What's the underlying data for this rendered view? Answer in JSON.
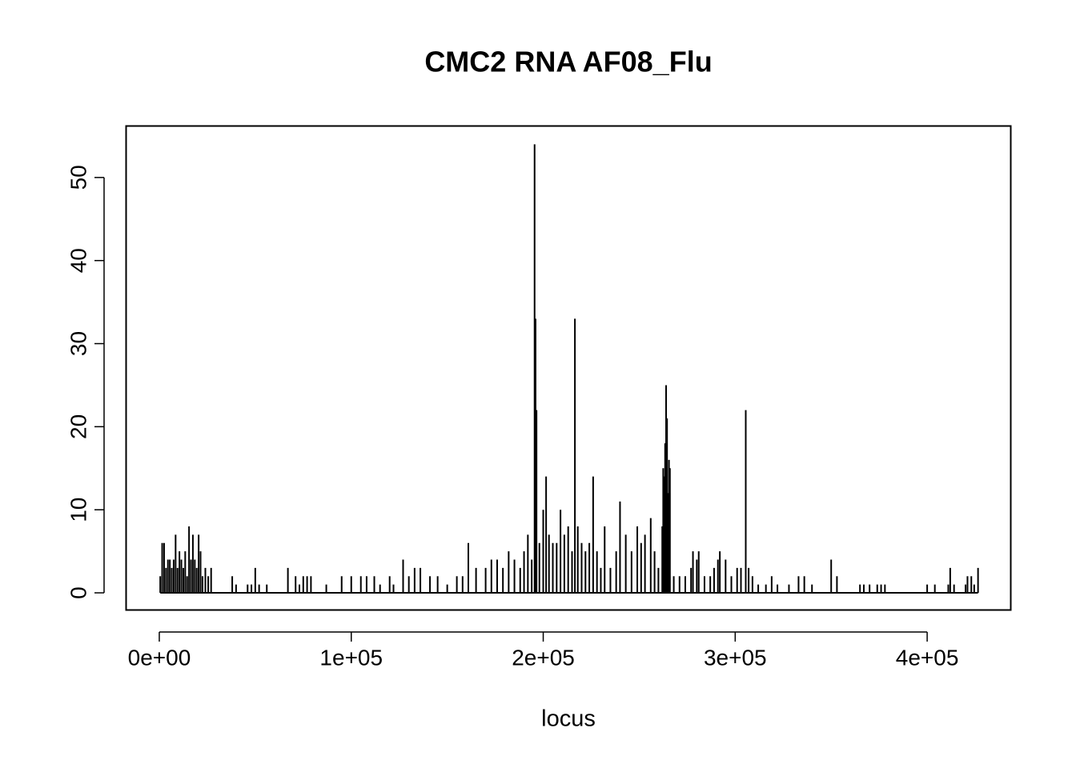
{
  "chart_data": {
    "type": "spike",
    "title": "CMC2 RNA AF08_Flu",
    "x_label": "locus",
    "color": "#000000",
    "xlim": [
      -17083,
      443750
    ],
    "ylim": [
      -2.115,
      56.15
    ],
    "xticks": [
      {
        "value": 0,
        "label": "0e+00"
      },
      {
        "value": 100000,
        "label": "1e+05"
      },
      {
        "value": 200000,
        "label": "2e+05"
      },
      {
        "value": 300000,
        "label": "3e+05"
      },
      {
        "value": 400000,
        "label": "4e+05"
      }
    ],
    "yticks": [
      0,
      10,
      20,
      30,
      40,
      50
    ],
    "x": [
      500,
      1500,
      2500,
      3500,
      4500,
      5500,
      6500,
      7500,
      8500,
      9500,
      10500,
      11500,
      12500,
      13500,
      14500,
      15500,
      16500,
      17500,
      18500,
      19500,
      20500,
      21500,
      22500,
      24000,
      25500,
      27000,
      38000,
      40000,
      46000,
      48000,
      50000,
      52000,
      56000,
      67000,
      71000,
      73000,
      75000,
      77000,
      79000,
      87000,
      95000,
      100000,
      105000,
      108000,
      112000,
      115000,
      120000,
      122000,
      127000,
      130000,
      133000,
      136000,
      141000,
      145000,
      150000,
      155000,
      158000,
      161000,
      165000,
      170000,
      173000,
      176000,
      179000,
      182000,
      185000,
      188000,
      190000,
      192000,
      194000,
      195500,
      196000,
      196500,
      198000,
      200000,
      201500,
      203000,
      205000,
      207000,
      209000,
      211000,
      213000,
      215000,
      216500,
      218000,
      220000,
      222000,
      224000,
      226000,
      228000,
      230000,
      232000,
      235000,
      238000,
      240000,
      243000,
      246000,
      249000,
      251000,
      253000,
      256000,
      258000,
      260000,
      262000,
      262500,
      263000,
      263500,
      264000,
      264500,
      265000,
      265500,
      266000,
      268000,
      271000,
      274000,
      277000,
      278000,
      280000,
      281000,
      284000,
      287000,
      289000,
      291000,
      292000,
      295000,
      298000,
      301000,
      303000,
      305500,
      307000,
      309000,
      312000,
      316000,
      319000,
      322000,
      328000,
      333000,
      336000,
      340000,
      350000,
      353000,
      365000,
      367000,
      370000,
      374000,
      376000,
      378000,
      400000,
      404000,
      411000,
      412000,
      414000,
      420000,
      421000,
      423000,
      424500,
      426500
    ],
    "values": [
      2,
      6,
      6,
      3,
      4,
      4,
      3,
      4,
      7,
      3,
      5,
      4,
      3,
      5,
      2,
      8,
      4,
      7,
      4,
      3,
      7,
      5,
      2,
      3,
      2,
      3,
      2,
      1,
      1,
      1,
      3,
      1,
      1,
      3,
      2,
      1,
      2,
      2,
      2,
      1,
      2,
      2,
      2,
      2,
      2,
      1,
      2,
      1,
      4,
      2,
      3,
      3,
      2,
      2,
      1,
      2,
      2,
      6,
      3,
      3,
      4,
      4,
      3,
      5,
      4,
      3,
      5,
      7,
      4,
      54,
      33,
      22,
      6,
      10,
      14,
      7,
      6,
      6,
      10,
      7,
      8,
      5,
      33,
      8,
      6,
      5,
      6,
      14,
      5,
      3,
      8,
      3,
      5,
      11,
      7,
      5,
      8,
      6,
      7,
      9,
      5,
      3,
      8,
      15,
      14,
      18,
      25,
      21,
      12,
      16,
      15,
      2,
      2,
      2,
      3,
      5,
      4,
      5,
      2,
      2,
      3,
      4,
      5,
      4,
      2,
      3,
      3,
      22,
      3,
      2,
      1,
      1,
      2,
      1,
      1,
      2,
      2,
      1,
      4,
      2,
      1,
      1,
      1,
      1,
      1,
      1,
      1,
      1,
      1,
      3,
      1,
      1,
      2,
      2,
      1,
      3
    ]
  }
}
